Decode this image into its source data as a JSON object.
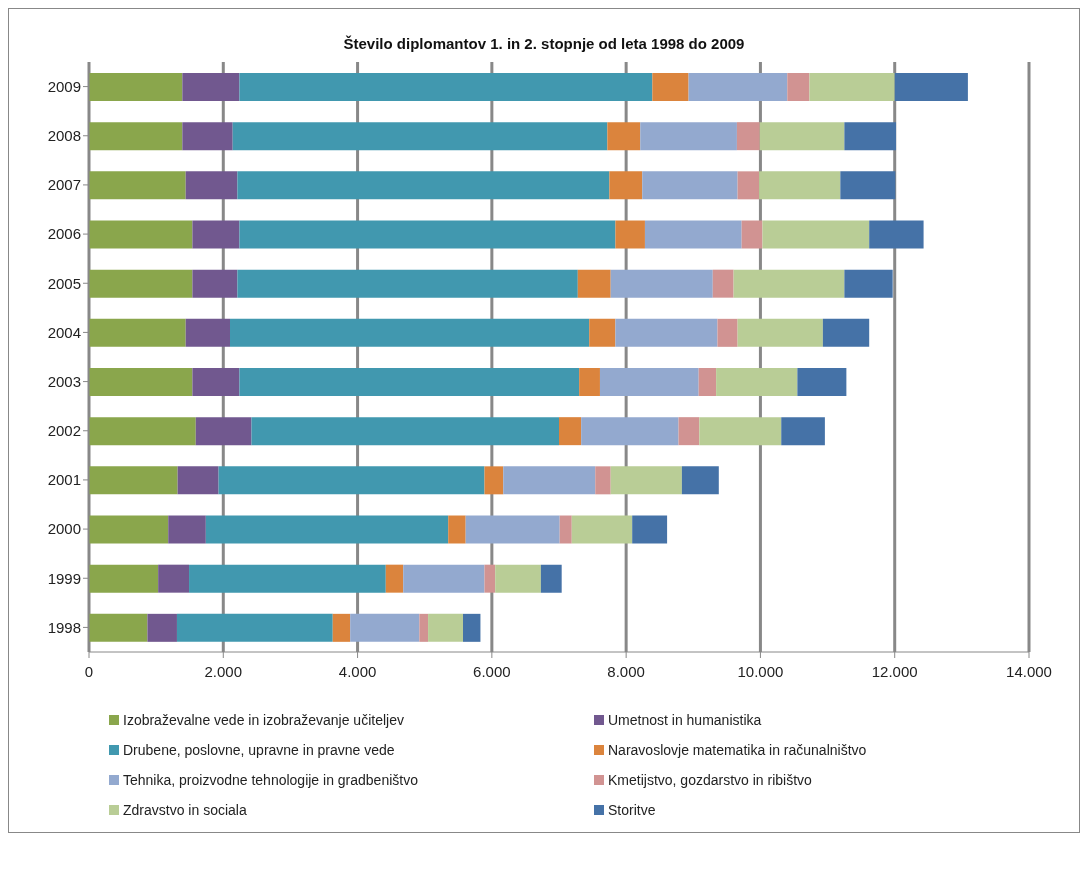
{
  "chart_data": {
    "type": "bar",
    "orientation": "horizontal",
    "stacked": true,
    "title": "Število diplomantov 1. in 2. stopnje od leta 1998 do 2009",
    "categories": [
      "2009",
      "2008",
      "2007",
      "2006",
      "2005",
      "2004",
      "2003",
      "2002",
      "2001",
      "2000",
      "1999",
      "1998"
    ],
    "series": [
      {
        "name": "Izobraževalne vede in izobraževanje učiteljev",
        "color": "#8aa64c",
        "values": [
          1390,
          1390,
          1440,
          1540,
          1540,
          1440,
          1540,
          1590,
          1320,
          1180,
          1030,
          870
        ]
      },
      {
        "name": "Umetnost in humanistika",
        "color": "#71588f",
        "values": [
          850,
          750,
          770,
          700,
          670,
          660,
          700,
          830,
          610,
          560,
          460,
          440
        ]
      },
      {
        "name": "Drubene, poslovne, upravne in pravne vede",
        "color": "#4198af",
        "values": [
          6150,
          5580,
          5540,
          5600,
          5070,
          5350,
          5060,
          4580,
          3960,
          3610,
          2930,
          2320
        ]
      },
      {
        "name": "Naravoslovje matematika in računalništvo",
        "color": "#db843d",
        "values": [
          540,
          490,
          490,
          440,
          490,
          390,
          310,
          330,
          280,
          260,
          260,
          260
        ]
      },
      {
        "name": "Tehnika, proizvodne tehnologije in gradbeništvo",
        "color": "#93a9cf",
        "values": [
          1470,
          1440,
          1420,
          1440,
          1520,
          1520,
          1470,
          1450,
          1370,
          1400,
          1210,
          1030
        ]
      },
      {
        "name": "Kmetijstvo, gozdarstvo in ribištvo",
        "color": "#d19392",
        "values": [
          330,
          340,
          320,
          310,
          310,
          300,
          260,
          310,
          230,
          180,
          160,
          130
        ]
      },
      {
        "name": "Zdravstvo in sociala",
        "color": "#b9cd96",
        "values": [
          1270,
          1260,
          1210,
          1590,
          1650,
          1270,
          1210,
          1220,
          1060,
          900,
          680,
          520
        ]
      },
      {
        "name": "Storitve",
        "color": "#4572a7",
        "values": [
          1090,
          770,
          820,
          810,
          720,
          690,
          730,
          650,
          550,
          520,
          310,
          260
        ]
      }
    ],
    "xlim": [
      0,
      14000
    ],
    "xticks": [
      0,
      {
        "value": 2000,
        "label": "2.000"
      },
      {
        "value": 4000,
        "label": "4.000"
      },
      {
        "value": 6000,
        "label": "6.000"
      },
      {
        "value": 8000,
        "label": "8.000"
      },
      {
        "value": 10000,
        "label": "10.000"
      },
      {
        "value": 12000,
        "label": "12.000"
      },
      {
        "value": 14000,
        "label": "14.000"
      }
    ],
    "grid": "x",
    "legend": "bottom"
  }
}
